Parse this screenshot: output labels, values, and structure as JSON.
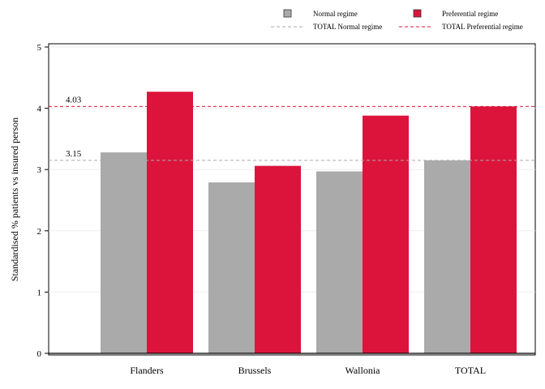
{
  "chart_data": {
    "type": "bar",
    "categories": [
      "Flanders",
      "Brussels",
      "Wallonia",
      "TOTAL"
    ],
    "series": [
      {
        "name": "Normal regime",
        "color": "#aaaaaa",
        "values": [
          3.28,
          2.79,
          2.97,
          3.15
        ]
      },
      {
        "name": "Preferential regime",
        "color": "#dc143c",
        "values": [
          4.27,
          3.06,
          3.88,
          4.03
        ]
      }
    ],
    "reference_lines": [
      {
        "name": "TOTAL Normal regime",
        "value": 3.15,
        "label": "3.15",
        "color": "#aaaaaa",
        "style": "dashed"
      },
      {
        "name": "TOTAL Preferential regime",
        "value": 4.03,
        "label": "4.03",
        "color": "#dc143c",
        "style": "dashed"
      }
    ],
    "ylabel": "Standardised % patients vs insured person",
    "xlabel": "",
    "ylim": [
      0,
      5
    ],
    "yticks": [
      0,
      1,
      2,
      3,
      4,
      5
    ],
    "grid": true,
    "legend_position": "top-right"
  }
}
